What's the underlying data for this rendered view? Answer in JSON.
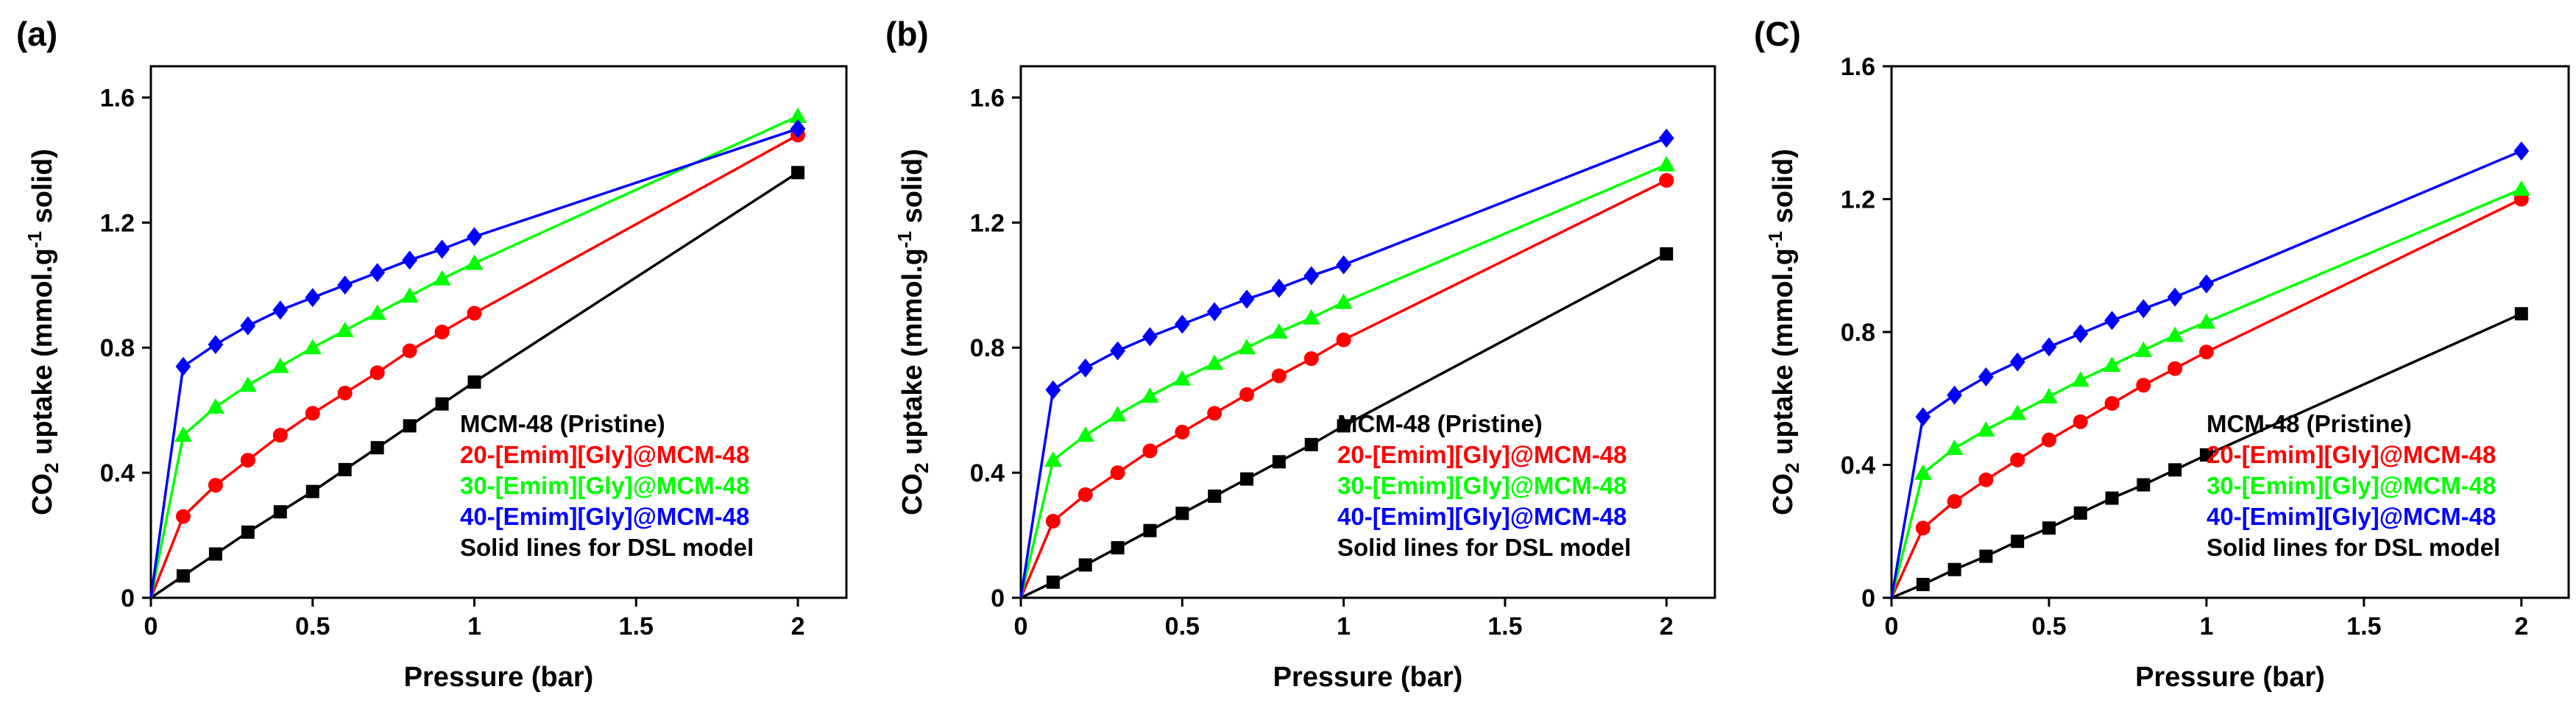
{
  "figure": {
    "background": "#ffffff"
  },
  "chart_data": [
    {
      "type": "line",
      "panel_label": "(a)",
      "xlabel": "Pressure (bar)",
      "ylabel": "CO2 uptake (mmol.g-1 solid)",
      "ylabel_parts": {
        "pre": "CO",
        "sub": "2",
        "mid": " uptake (mmol.g",
        "sup": "-1",
        "post": " solid)"
      },
      "xlim": [
        0,
        2.15
      ],
      "ylim": [
        0,
        1.7
      ],
      "xticks": [
        0,
        0.5,
        1.0,
        1.5,
        2.0
      ],
      "xtick_labels": [
        "0",
        "0.5",
        "1",
        "1.5",
        "2"
      ],
      "yticks": [
        0,
        0.4,
        0.8,
        1.2,
        1.6
      ],
      "ytick_labels": [
        "0",
        "0.4",
        "0.8",
        "1.2",
        "1.6"
      ],
      "legend_position": "lower-right",
      "legend_note": "Solid lines for DSL model",
      "series": [
        {
          "name": "MCM-48 (Pristine)",
          "color": "#000000",
          "marker": "square",
          "x": [
            0,
            0.1,
            0.2,
            0.3,
            0.4,
            0.5,
            0.6,
            0.7,
            0.8,
            0.9,
            1.0,
            2.0
          ],
          "y": [
            0,
            0.07,
            0.14,
            0.21,
            0.275,
            0.34,
            0.41,
            0.48,
            0.55,
            0.62,
            0.69,
            1.36
          ]
        },
        {
          "name": "20-[Emim][Gly]@MCM-48",
          "color": "#ff0000",
          "marker": "circle",
          "x": [
            0,
            0.1,
            0.2,
            0.3,
            0.4,
            0.5,
            0.6,
            0.7,
            0.8,
            0.9,
            1.0,
            2.0
          ],
          "y": [
            0,
            0.26,
            0.36,
            0.44,
            0.52,
            0.59,
            0.655,
            0.72,
            0.79,
            0.85,
            0.91,
            1.48
          ]
        },
        {
          "name": "30-[Emim][Gly]@MCM-48",
          "color": "#00ff00",
          "marker": "triangle",
          "x": [
            0,
            0.1,
            0.2,
            0.3,
            0.4,
            0.5,
            0.6,
            0.7,
            0.8,
            0.9,
            1.0,
            2.0
          ],
          "y": [
            0,
            0.52,
            0.61,
            0.68,
            0.74,
            0.8,
            0.855,
            0.91,
            0.965,
            1.02,
            1.07,
            1.54
          ]
        },
        {
          "name": "40-[Emim][Gly]@MCM-48",
          "color": "#0000ff",
          "marker": "diamond",
          "x": [
            0,
            0.1,
            0.2,
            0.3,
            0.4,
            0.5,
            0.6,
            0.7,
            0.8,
            0.9,
            1.0,
            2.0
          ],
          "y": [
            0,
            0.74,
            0.81,
            0.87,
            0.92,
            0.96,
            1.0,
            1.04,
            1.08,
            1.115,
            1.155,
            1.5
          ]
        }
      ]
    },
    {
      "type": "line",
      "panel_label": "(b)",
      "xlabel": "Pressure (bar)",
      "ylabel": "CO2 uptake (mmol.g-1 solid)",
      "ylabel_parts": {
        "pre": "CO",
        "sub": "2",
        "mid": " uptake (mmol.g",
        "sup": "-1",
        "post": " solid)"
      },
      "xlim": [
        0,
        2.15
      ],
      "ylim": [
        0,
        1.7
      ],
      "xticks": [
        0,
        0.5,
        1.0,
        1.5,
        2.0
      ],
      "xtick_labels": [
        "0",
        "0.5",
        "1",
        "1.5",
        "2"
      ],
      "yticks": [
        0,
        0.4,
        0.8,
        1.2,
        1.6
      ],
      "ytick_labels": [
        "0",
        "0.4",
        "0.8",
        "1.2",
        "1.6"
      ],
      "legend_position": "lower-right",
      "legend_note": "Solid lines for DSL model",
      "series": [
        {
          "name": "MCM-48 (Pristine)",
          "color": "#000000",
          "marker": "square",
          "x": [
            0,
            0.1,
            0.2,
            0.3,
            0.4,
            0.5,
            0.6,
            0.7,
            0.8,
            0.9,
            1.0,
            2.0
          ],
          "y": [
            0,
            0.05,
            0.105,
            0.16,
            0.215,
            0.27,
            0.325,
            0.38,
            0.435,
            0.49,
            0.55,
            1.1
          ]
        },
        {
          "name": "20-[Emim][Gly]@MCM-48",
          "color": "#ff0000",
          "marker": "circle",
          "x": [
            0,
            0.1,
            0.2,
            0.3,
            0.4,
            0.5,
            0.6,
            0.7,
            0.8,
            0.9,
            1.0,
            2.0
          ],
          "y": [
            0,
            0.245,
            0.33,
            0.4,
            0.47,
            0.53,
            0.59,
            0.65,
            0.71,
            0.765,
            0.825,
            1.335
          ]
        },
        {
          "name": "30-[Emim][Gly]@MCM-48",
          "color": "#00ff00",
          "marker": "triangle",
          "x": [
            0,
            0.1,
            0.2,
            0.3,
            0.4,
            0.5,
            0.6,
            0.7,
            0.8,
            0.9,
            1.0,
            2.0
          ],
          "y": [
            0,
            0.44,
            0.52,
            0.585,
            0.645,
            0.7,
            0.75,
            0.8,
            0.85,
            0.895,
            0.945,
            1.385
          ]
        },
        {
          "name": "40-[Emim][Gly]@MCM-48",
          "color": "#0000ff",
          "marker": "diamond",
          "x": [
            0,
            0.1,
            0.2,
            0.3,
            0.4,
            0.5,
            0.6,
            0.7,
            0.8,
            0.9,
            1.0,
            2.0
          ],
          "y": [
            0,
            0.665,
            0.735,
            0.79,
            0.835,
            0.875,
            0.915,
            0.955,
            0.99,
            1.03,
            1.065,
            1.47
          ]
        }
      ]
    },
    {
      "type": "line",
      "panel_label": "(C)",
      "xlabel": "Pressure (bar)",
      "ylabel": "CO2 uptake (mmol.g-1 solid)",
      "ylabel_parts": {
        "pre": "CO",
        "sub": "2",
        "mid": " uptake (mmol.g",
        "sup": "-1",
        "post": " solid)"
      },
      "xlim": [
        0,
        2.15
      ],
      "ylim": [
        0,
        1.6
      ],
      "xticks": [
        0,
        0.5,
        1.0,
        1.5,
        2.0
      ],
      "xtick_labels": [
        "0",
        "0.5",
        "1",
        "1.5",
        "2"
      ],
      "yticks": [
        0,
        0.4,
        0.8,
        1.2,
        1.6
      ],
      "ytick_labels": [
        "0",
        "0.4",
        "0.8",
        "1.2",
        "1.6"
      ],
      "legend_position": "lower-right",
      "legend_note": "Solid lines for DSL model",
      "series": [
        {
          "name": "MCM-48 (Pristine)",
          "color": "#000000",
          "marker": "square",
          "x": [
            0,
            0.1,
            0.2,
            0.3,
            0.4,
            0.5,
            0.6,
            0.7,
            0.8,
            0.9,
            1.0,
            2.0
          ],
          "y": [
            0,
            0.04,
            0.085,
            0.125,
            0.17,
            0.21,
            0.255,
            0.3,
            0.34,
            0.385,
            0.43,
            0.855
          ]
        },
        {
          "name": "20-[Emim][Gly]@MCM-48",
          "color": "#ff0000",
          "marker": "circle",
          "x": [
            0,
            0.1,
            0.2,
            0.3,
            0.4,
            0.5,
            0.6,
            0.7,
            0.8,
            0.9,
            1.0,
            2.0
          ],
          "y": [
            0,
            0.21,
            0.29,
            0.355,
            0.415,
            0.475,
            0.53,
            0.585,
            0.64,
            0.69,
            0.74,
            1.2
          ]
        },
        {
          "name": "30-[Emim][Gly]@MCM-48",
          "color": "#00ff00",
          "marker": "triangle",
          "x": [
            0,
            0.1,
            0.2,
            0.3,
            0.4,
            0.5,
            0.6,
            0.7,
            0.8,
            0.9,
            1.0,
            2.0
          ],
          "y": [
            0,
            0.375,
            0.45,
            0.505,
            0.555,
            0.605,
            0.655,
            0.7,
            0.745,
            0.79,
            0.83,
            1.23
          ]
        },
        {
          "name": "40-[Emim][Gly]@MCM-48",
          "color": "#0000ff",
          "marker": "diamond",
          "x": [
            0,
            0.1,
            0.2,
            0.3,
            0.4,
            0.5,
            0.6,
            0.7,
            0.8,
            0.9,
            1.0,
            2.0
          ],
          "y": [
            0,
            0.545,
            0.61,
            0.665,
            0.71,
            0.755,
            0.795,
            0.835,
            0.87,
            0.905,
            0.945,
            1.345
          ]
        }
      ]
    }
  ]
}
